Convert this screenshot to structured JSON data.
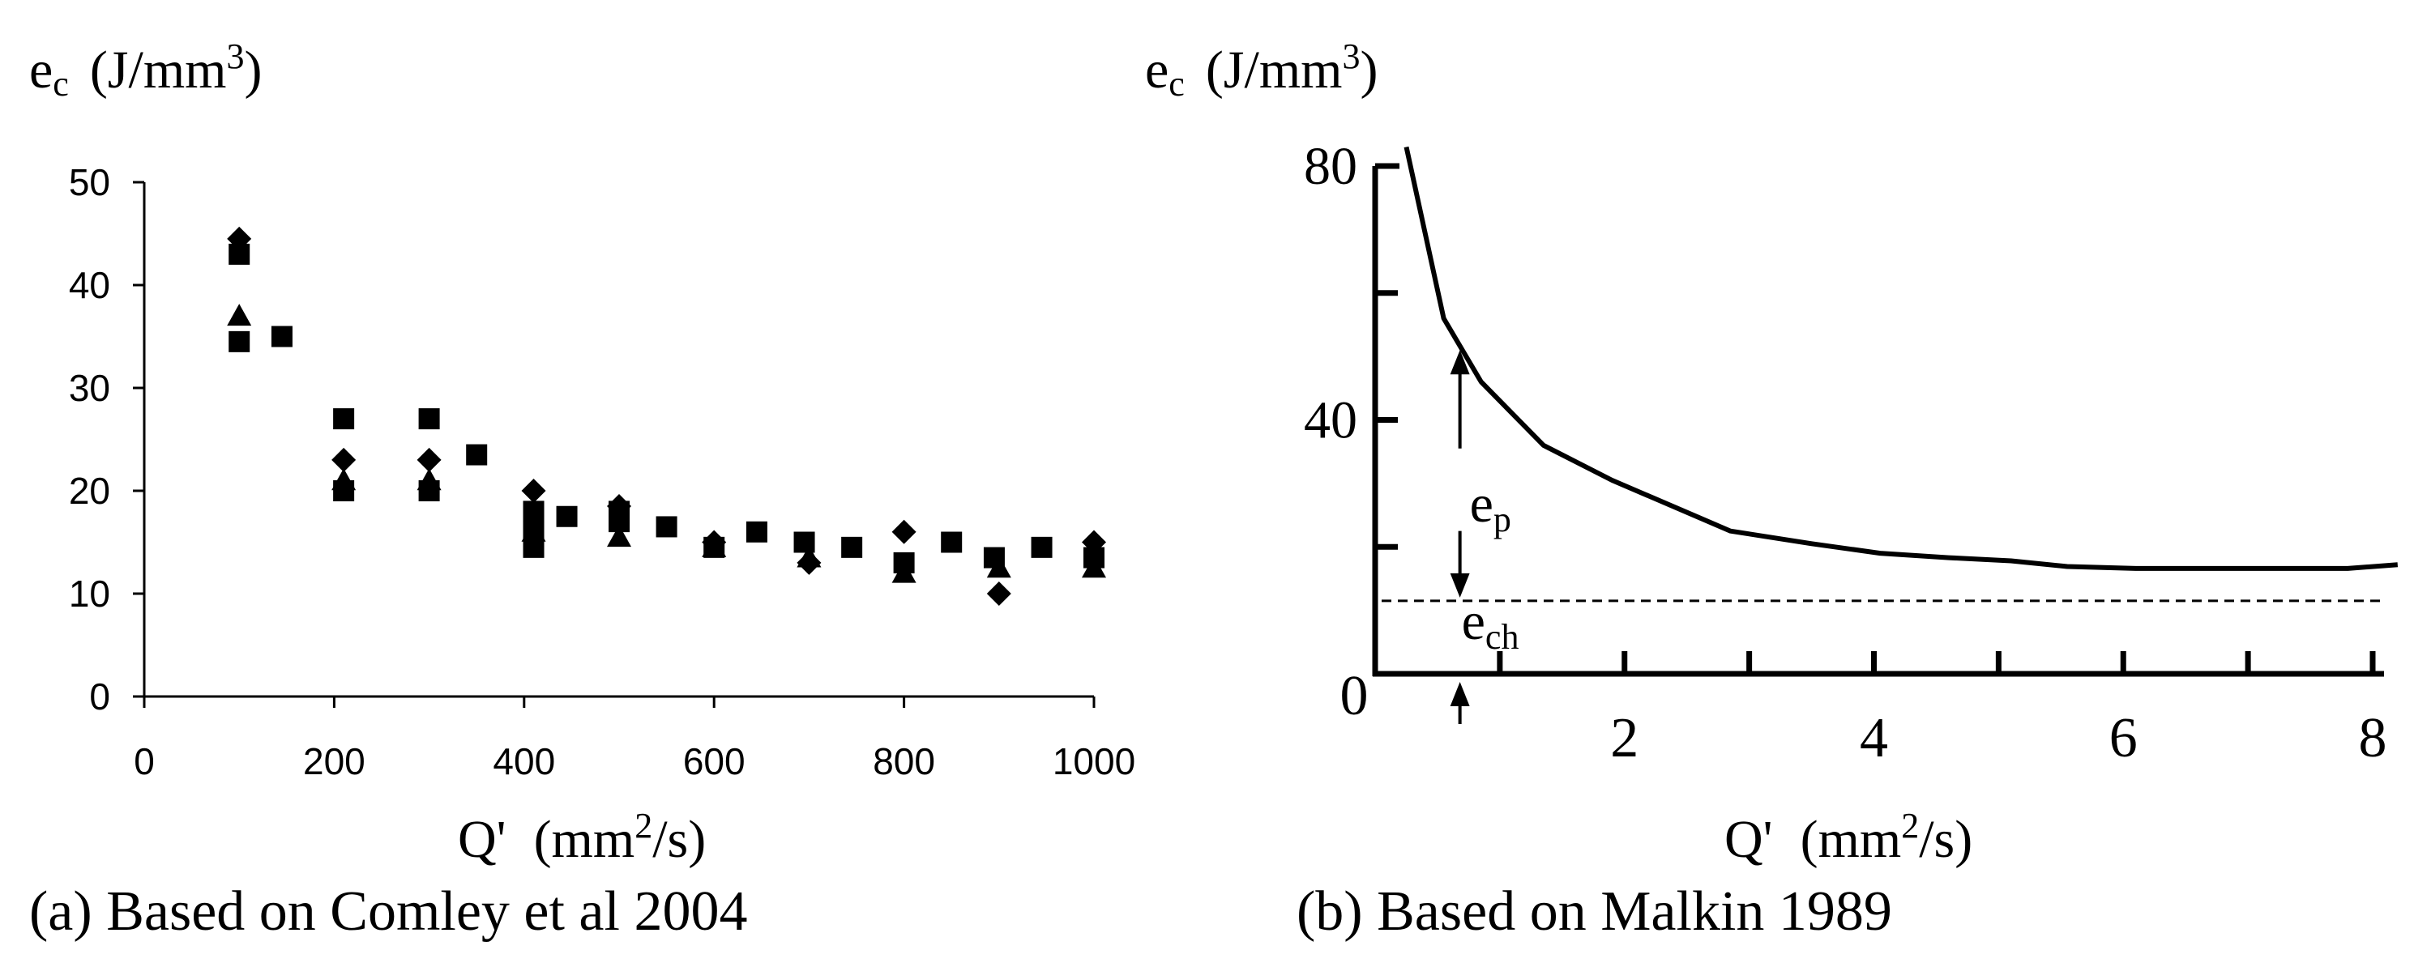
{
  "chart_data": [
    {
      "type": "scatter",
      "y_symbol": "e",
      "y_symbol_sub": "c",
      "y_unit": "(J/mm",
      "y_unit_sup": "3",
      "y_unit_close": ")",
      "x_symbol": "Q'",
      "x_unit": "(mm",
      "x_unit_sup": "2",
      "x_unit_close": "/s)",
      "xlim": [
        0,
        1000
      ],
      "ylim": [
        0,
        50
      ],
      "xticks": [
        "0",
        "200",
        "400",
        "600",
        "800",
        "1000"
      ],
      "yticks": [
        "0",
        "10",
        "20",
        "30",
        "40",
        "50"
      ],
      "xtick_values": [
        0,
        200,
        400,
        600,
        800,
        1000
      ],
      "ytick_values": [
        0,
        10,
        20,
        30,
        40,
        50
      ],
      "caption": "(a) Based on Comley et al 2004",
      "series": [
        {
          "name": "diamond",
          "marker": "diamond",
          "x": [
            100,
            210,
            300,
            410,
            500,
            600,
            700,
            800,
            900,
            1000
          ],
          "y": [
            44.5,
            23,
            23,
            20,
            18.5,
            15,
            13,
            16,
            10,
            15
          ]
        },
        {
          "name": "triangle",
          "marker": "triangle",
          "x": [
            100,
            210,
            300,
            410,
            500,
            600,
            700,
            800,
            900,
            1000
          ],
          "y": [
            37,
            21,
            21,
            16,
            15.5,
            14.5,
            13.5,
            12,
            12.5,
            12.5
          ]
        },
        {
          "name": "square",
          "marker": "square",
          "x": [
            100,
            100,
            145,
            210,
            210,
            300,
            300,
            350,
            410,
            410,
            410,
            445,
            500,
            500,
            550,
            600,
            645,
            695,
            745,
            800,
            850,
            895,
            945,
            1000
          ],
          "y": [
            43,
            34.5,
            35,
            27,
            20,
            27,
            20,
            23.5,
            18,
            16,
            14.5,
            17.5,
            18,
            17,
            16.5,
            14.5,
            16,
            15,
            14.5,
            13,
            15,
            13.5,
            14.5,
            13.5
          ]
        }
      ]
    },
    {
      "type": "line",
      "y_symbol": "e",
      "y_symbol_sub": "c",
      "y_unit": "(J/mm",
      "y_unit_sup": "3",
      "y_unit_close": ")",
      "x_symbol": "Q'",
      "x_unit": "(mm",
      "x_unit_sup": "2",
      "x_unit_close": "/s)",
      "xlim": [
        0,
        8
      ],
      "ylim": [
        0,
        80
      ],
      "xticks": [
        "0",
        "2",
        "4",
        "6",
        "8"
      ],
      "xtick_values": [
        0,
        2,
        4,
        6,
        8
      ],
      "yticks": [
        "40",
        "80"
      ],
      "ytick_values": [
        40,
        80
      ],
      "minor_x_ticks": [
        1,
        2,
        3,
        4,
        5,
        6,
        7,
        8
      ],
      "minor_y_ticks": [
        20,
        40,
        60
      ],
      "caption": "(b) Based on Malkin 1989",
      "series": [
        {
          "name": "total specific energy",
          "x": [
            0.25,
            0.55,
            0.85,
            1.35,
            1.9,
            2.85,
            3.5,
            4.05,
            4.6,
            5.1,
            5.55,
            6.1,
            6.7,
            7.3,
            7.8,
            8.2
          ],
          "y": [
            83,
            56,
            46,
            36,
            30.5,
            22.5,
            20.5,
            19,
            18.3,
            17.8,
            16.9,
            16.6,
            16.6,
            16.6,
            16.6,
            17.2
          ]
        }
      ],
      "chip_energy_level": 11.5,
      "annotation_x": 0.68,
      "annotations": {
        "ep_symbol": "e",
        "ep_sub": "p",
        "ech_symbol": "e",
        "ech_sub": "ch"
      }
    }
  ]
}
